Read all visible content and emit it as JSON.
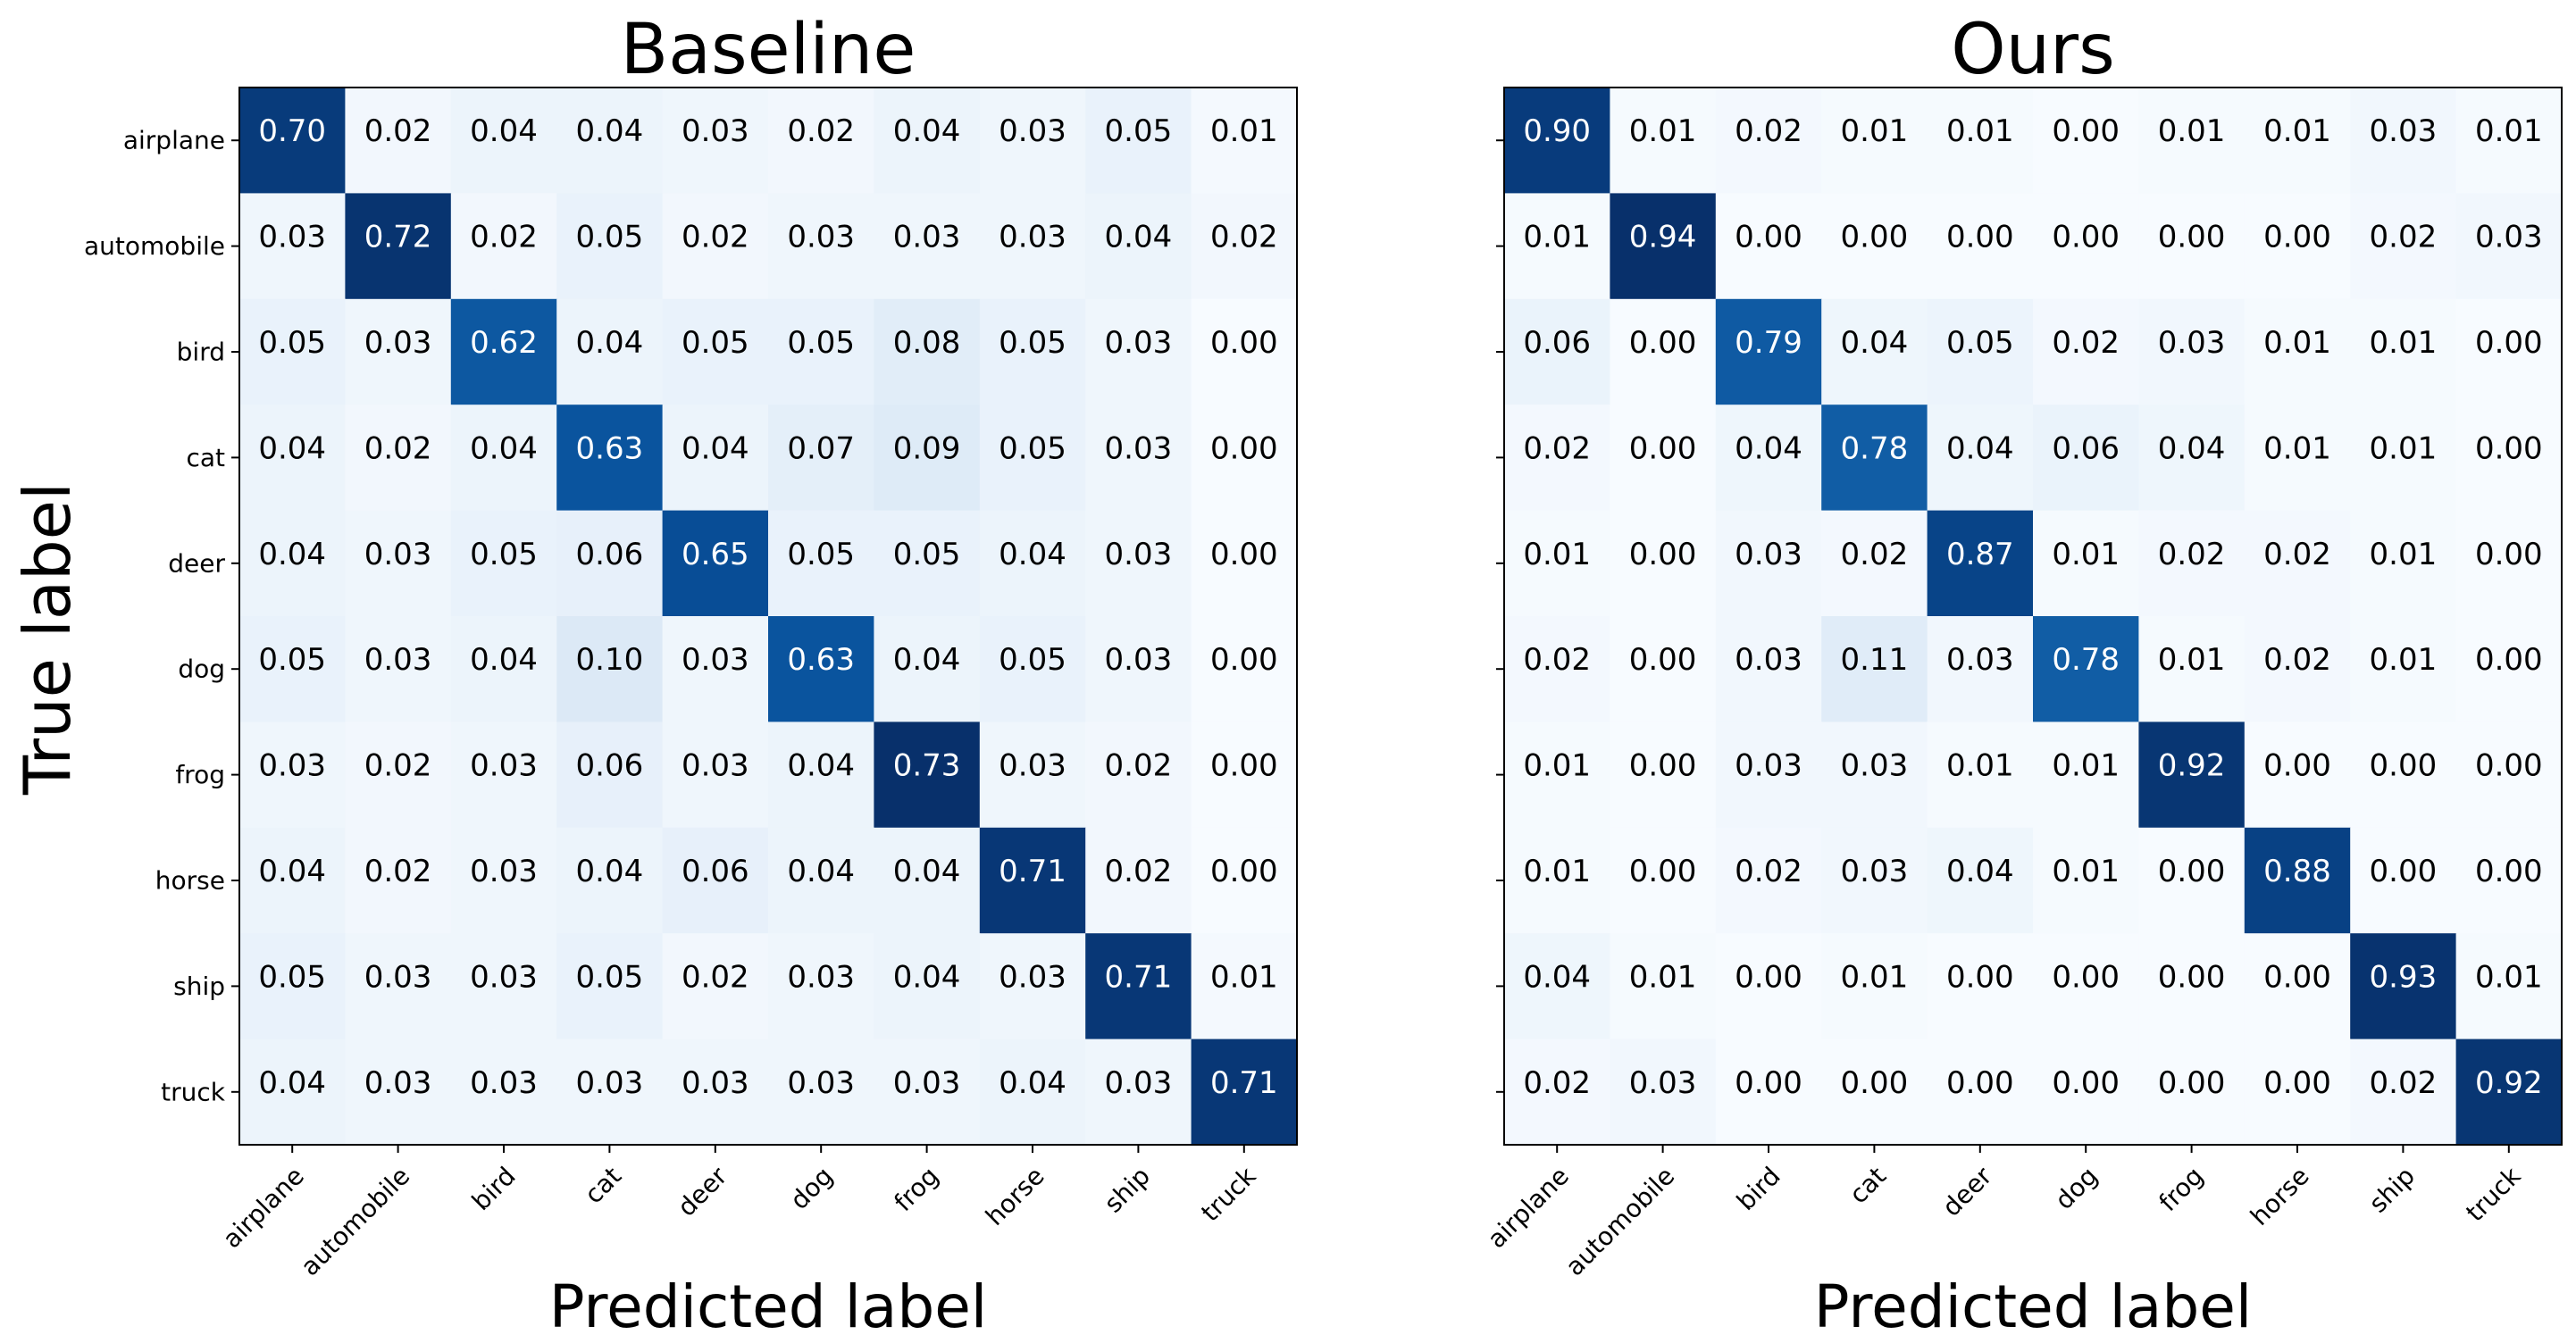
{
  "figure": {
    "ylabel": "True label"
  },
  "chart_data": [
    {
      "type": "heatmap",
      "title": "Baseline",
      "xlabel": "Predicted label",
      "ylabel": "True label",
      "x_categories": [
        "airplane",
        "automobile",
        "bird",
        "cat",
        "deer",
        "dog",
        "frog",
        "horse",
        "ship",
        "truck"
      ],
      "y_categories": [
        "airplane",
        "automobile",
        "bird",
        "cat",
        "deer",
        "dog",
        "frog",
        "horse",
        "ship",
        "truck"
      ],
      "colormap": "Blues",
      "matrix": [
        [
          0.7,
          0.02,
          0.04,
          0.04,
          0.03,
          0.02,
          0.04,
          0.03,
          0.05,
          0.01
        ],
        [
          0.03,
          0.72,
          0.02,
          0.05,
          0.02,
          0.03,
          0.03,
          0.03,
          0.04,
          0.02
        ],
        [
          0.05,
          0.03,
          0.62,
          0.04,
          0.05,
          0.05,
          0.08,
          0.05,
          0.03,
          0.0
        ],
        [
          0.04,
          0.02,
          0.04,
          0.63,
          0.04,
          0.07,
          0.09,
          0.05,
          0.03,
          0.0
        ],
        [
          0.04,
          0.03,
          0.05,
          0.06,
          0.65,
          0.05,
          0.05,
          0.04,
          0.03,
          0.0
        ],
        [
          0.05,
          0.03,
          0.04,
          0.1,
          0.03,
          0.63,
          0.04,
          0.05,
          0.03,
          0.0
        ],
        [
          0.03,
          0.02,
          0.03,
          0.06,
          0.03,
          0.04,
          0.73,
          0.03,
          0.02,
          0.0
        ],
        [
          0.04,
          0.02,
          0.03,
          0.04,
          0.06,
          0.04,
          0.04,
          0.71,
          0.02,
          0.0
        ],
        [
          0.05,
          0.03,
          0.03,
          0.05,
          0.02,
          0.03,
          0.04,
          0.03,
          0.71,
          0.01
        ],
        [
          0.04,
          0.03,
          0.03,
          0.03,
          0.03,
          0.03,
          0.03,
          0.04,
          0.03,
          0.71
        ]
      ]
    },
    {
      "type": "heatmap",
      "title": "Ours",
      "xlabel": "Predicted label",
      "x_categories": [
        "airplane",
        "automobile",
        "bird",
        "cat",
        "deer",
        "dog",
        "frog",
        "horse",
        "ship",
        "truck"
      ],
      "y_categories": [
        "airplane",
        "automobile",
        "bird",
        "cat",
        "deer",
        "dog",
        "frog",
        "horse",
        "ship",
        "truck"
      ],
      "colormap": "Blues",
      "matrix": [
        [
          0.9,
          0.01,
          0.02,
          0.01,
          0.01,
          0.0,
          0.01,
          0.01,
          0.03,
          0.01
        ],
        [
          0.01,
          0.94,
          0.0,
          0.0,
          0.0,
          0.0,
          0.0,
          0.0,
          0.02,
          0.03
        ],
        [
          0.06,
          0.0,
          0.79,
          0.04,
          0.05,
          0.02,
          0.03,
          0.01,
          0.01,
          0.0
        ],
        [
          0.02,
          0.0,
          0.04,
          0.78,
          0.04,
          0.06,
          0.04,
          0.01,
          0.01,
          0.0
        ],
        [
          0.01,
          0.0,
          0.03,
          0.02,
          0.87,
          0.01,
          0.02,
          0.02,
          0.01,
          0.0
        ],
        [
          0.02,
          0.0,
          0.03,
          0.11,
          0.03,
          0.78,
          0.01,
          0.02,
          0.01,
          0.0
        ],
        [
          0.01,
          0.0,
          0.03,
          0.03,
          0.01,
          0.01,
          0.92,
          0.0,
          0.0,
          0.0
        ],
        [
          0.01,
          0.0,
          0.02,
          0.03,
          0.04,
          0.01,
          0.0,
          0.88,
          0.0,
          0.0
        ],
        [
          0.04,
          0.01,
          0.0,
          0.01,
          0.0,
          0.0,
          0.0,
          0.0,
          0.93,
          0.01
        ],
        [
          0.02,
          0.03,
          0.0,
          0.0,
          0.0,
          0.0,
          0.0,
          0.0,
          0.02,
          0.92
        ]
      ]
    }
  ]
}
